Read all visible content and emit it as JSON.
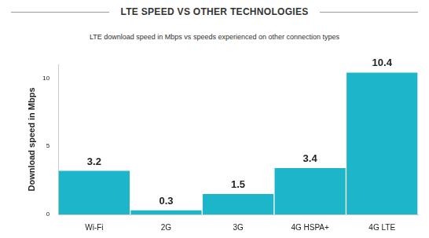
{
  "chart_data": {
    "type": "bar",
    "title": "LTE SPEED VS OTHER TECHNOLOGIES",
    "subtitle": "LTE download speed in Mbps vs speeds experienced on other connection types",
    "y_label": "Download speed in Mbps",
    "categories": [
      "Wi-Fi",
      "2G",
      "3G",
      "4G HSPA+",
      "4G LTE"
    ],
    "values": [
      3.2,
      0.3,
      1.5,
      3.4,
      10.4
    ],
    "color": "#1cb5c9",
    "ylim": [
      0,
      11
    ],
    "yticks": [
      0,
      5,
      10
    ],
    "grid": false,
    "data_labels": true
  }
}
